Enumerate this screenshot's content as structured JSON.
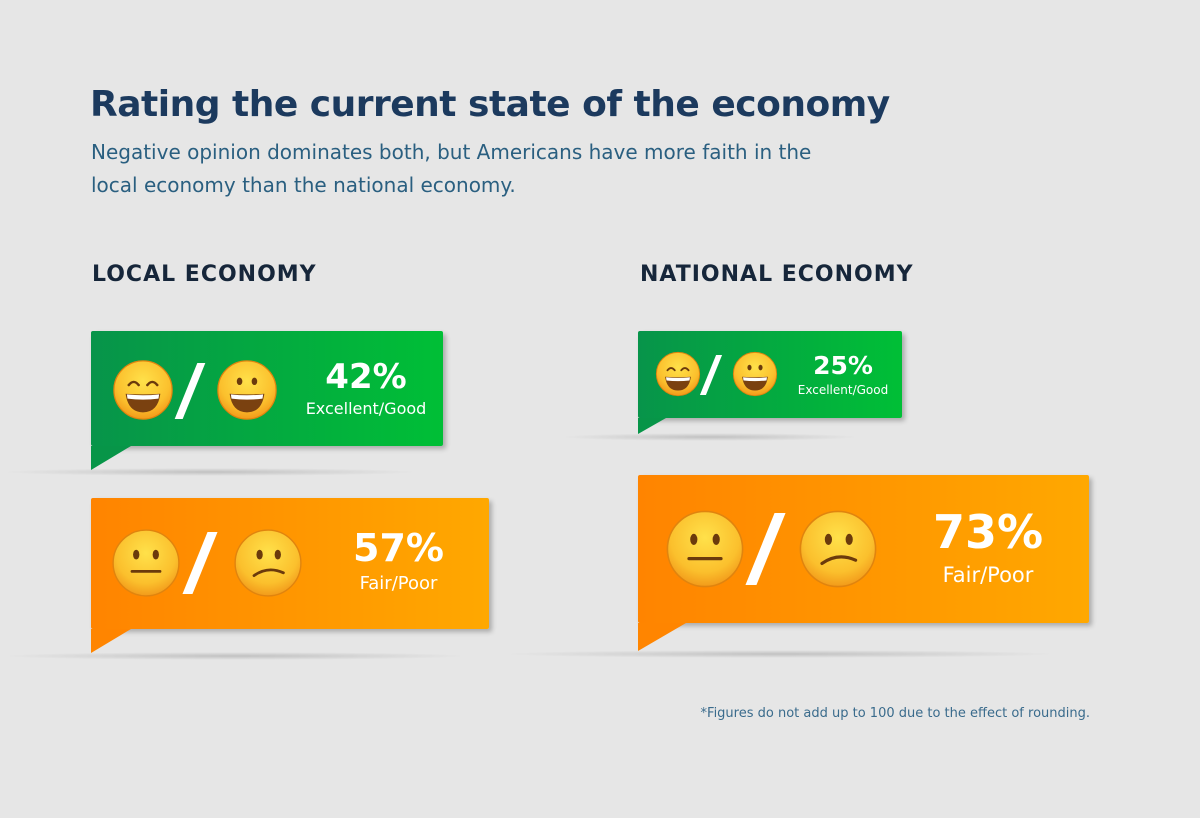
{
  "title": "Rating the current state of the economy",
  "subtitle": "Negative opinion dominates both, but Americans have more faith in the local economy than the national economy.",
  "footnote": "*Figures do not add up to 100 due to the effect of rounding.",
  "colors": {
    "positive": "#00a844",
    "negative": "#ff9400",
    "title": "#1c3a5e"
  },
  "chart_data": {
    "type": "bar",
    "categories": [
      "LOCAL ECONOMY",
      "NATIONAL ECONOMY"
    ],
    "series": [
      {
        "name": "Excellent/Good",
        "values": [
          42,
          25
        ],
        "icons": [
          "grinning-squinting-face-icon",
          "grinning-face-icon"
        ]
      },
      {
        "name": "Fair/Poor",
        "values": [
          57,
          73
        ],
        "icons": [
          "neutral-face-icon",
          "confused-face-icon"
        ]
      }
    ],
    "labels": {
      "local_positive": "42%",
      "local_negative": "57%",
      "national_positive": "25%",
      "national_negative": "73%"
    }
  }
}
